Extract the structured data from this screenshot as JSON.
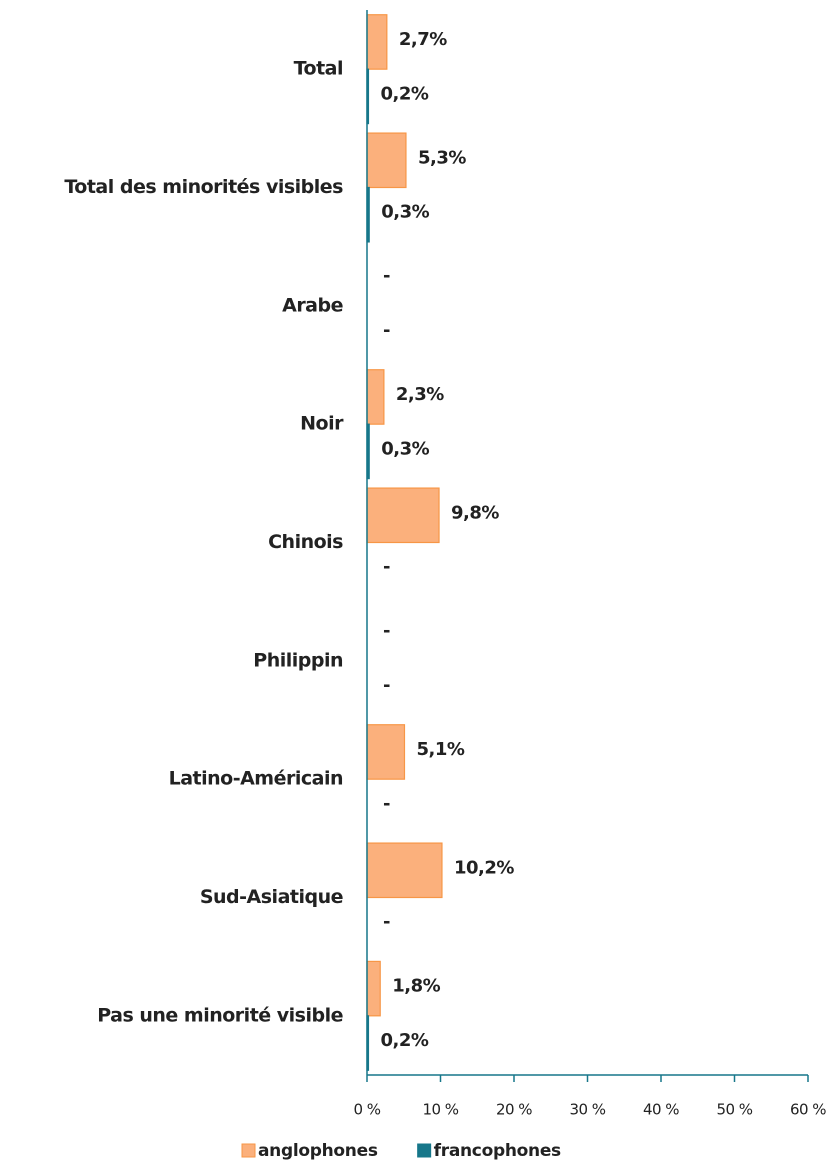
{
  "chart_data": {
    "type": "barh",
    "categories": [
      "Total",
      "Total des minorités visibles",
      "Arabe",
      "Noir",
      "Chinois",
      "Philippin",
      "Latino-Américain",
      "Sud-Asiatique",
      "Pas une minorité visible"
    ],
    "series": [
      {
        "name": "anglophones",
        "color": "#fbb07c",
        "edge": "#f79646",
        "values": [
          2.7,
          5.3,
          null,
          2.3,
          9.8,
          null,
          5.1,
          10.2,
          1.8
        ],
        "value_labels": [
          "2,7%",
          "5,3%",
          "-",
          "2,3%",
          "9,8%",
          "-",
          "5,1%",
          "10,2%",
          "1,8%"
        ]
      },
      {
        "name": "francophones",
        "color": "#17778a",
        "edge": "#17778a",
        "values": [
          0.2,
          0.3,
          null,
          0.3,
          null,
          null,
          null,
          null,
          0.2
        ],
        "value_labels": [
          "0,2%",
          "0,3%",
          "-",
          "0,3%",
          "-",
          "-",
          "-",
          "-",
          "0,2%"
        ]
      }
    ],
    "xlim": [
      0,
      60
    ],
    "xticks": [
      {
        "value": 0,
        "label": "0 %"
      },
      {
        "value": 10,
        "label": "10 %"
      },
      {
        "value": 20,
        "label": "20 %"
      },
      {
        "value": 30,
        "label": "30 %"
      },
      {
        "value": 40,
        "label": "40 %"
      },
      {
        "value": 50,
        "label": "50 %"
      },
      {
        "value": 60,
        "label": "60 %"
      }
    ],
    "legend": "bottom"
  }
}
